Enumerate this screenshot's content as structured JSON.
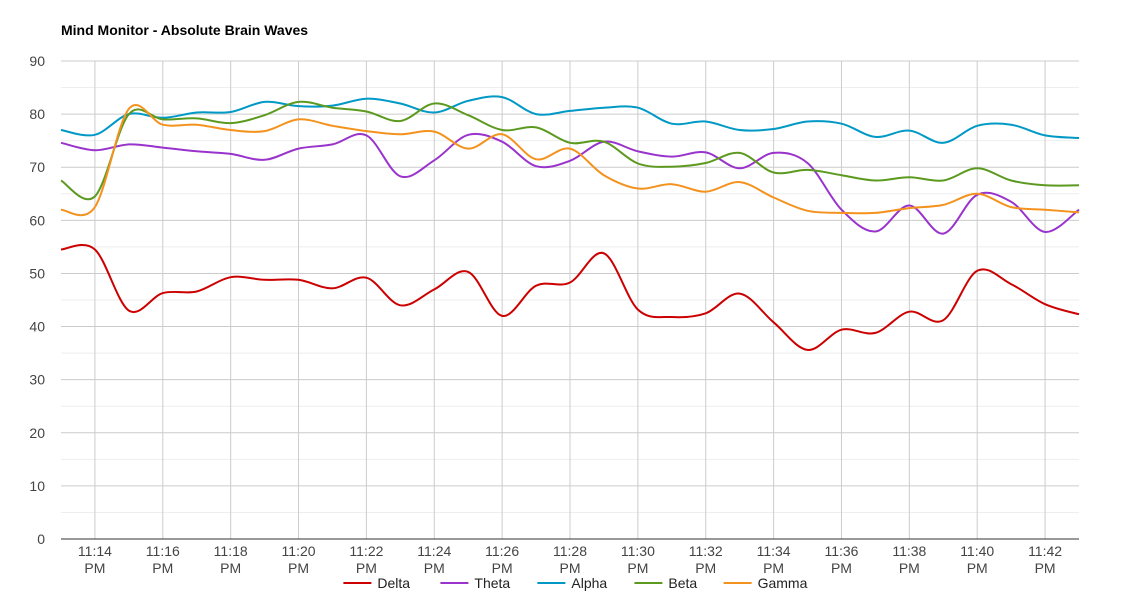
{
  "chart_data": {
    "type": "line",
    "title": "Mind Monitor -  Absolute Brain Waves",
    "xlabel": "",
    "ylabel": "",
    "ylim": [
      0,
      90
    ],
    "yticks": [
      0,
      10,
      20,
      30,
      40,
      50,
      60,
      70,
      80,
      90
    ],
    "xlim": [
      "11:13",
      "11:43"
    ],
    "xticks": [
      {
        "t": "11:14",
        "label": [
          "11:14",
          "PM"
        ]
      },
      {
        "t": "11:16",
        "label": [
          "11:16",
          "PM"
        ]
      },
      {
        "t": "11:18",
        "label": [
          "11:18",
          "PM"
        ]
      },
      {
        "t": "11:20",
        "label": [
          "11:20",
          "PM"
        ]
      },
      {
        "t": "11:22",
        "label": [
          "11:22",
          "PM"
        ]
      },
      {
        "t": "11:24",
        "label": [
          "11:24",
          "PM"
        ]
      },
      {
        "t": "11:26",
        "label": [
          "11:26",
          "PM"
        ]
      },
      {
        "t": "11:28",
        "label": [
          "11:28",
          "PM"
        ]
      },
      {
        "t": "11:30",
        "label": [
          "11:30",
          "PM"
        ]
      },
      {
        "t": "11:32",
        "label": [
          "11:32",
          "PM"
        ]
      },
      {
        "t": "11:34",
        "label": [
          "11:34",
          "PM"
        ]
      },
      {
        "t": "11:36",
        "label": [
          "11:36",
          "PM"
        ]
      },
      {
        "t": "11:38",
        "label": [
          "11:38",
          "PM"
        ]
      },
      {
        "t": "11:40",
        "label": [
          "11:40",
          "PM"
        ]
      },
      {
        "t": "11:42",
        "label": [
          "11:42",
          "PM"
        ]
      }
    ],
    "grid": true,
    "legend_position": "bottom",
    "x": [
      "11:13",
      "11:14",
      "11:15",
      "11:16",
      "11:17",
      "11:18",
      "11:19",
      "11:20",
      "11:21",
      "11:22",
      "11:23",
      "11:24",
      "11:25",
      "11:26",
      "11:27",
      "11:28",
      "11:29",
      "11:30",
      "11:31",
      "11:32",
      "11:33",
      "11:34",
      "11:35",
      "11:36",
      "11:37",
      "11:38",
      "11:39",
      "11:40",
      "11:41",
      "11:42",
      "11:43"
    ],
    "series": [
      {
        "name": "Delta",
        "color": "#cc0000",
        "values": [
          54.5,
          54.5,
          43,
          46.3,
          46.6,
          49.3,
          48.8,
          48.8,
          47.2,
          49.2,
          44,
          47,
          50.3,
          42,
          47.7,
          48.3,
          53.8,
          43.2,
          41.8,
          42.5,
          46.2,
          40.8,
          35.6,
          39.4,
          38.8,
          42.8,
          41.2,
          50.5,
          48,
          44.2,
          42.3
        ]
      },
      {
        "name": "Theta",
        "color": "#9933cc",
        "values": [
          74.6,
          73.2,
          74.3,
          73.7,
          73,
          72.5,
          71.4,
          73.5,
          74.3,
          76,
          68.3,
          71.3,
          76.1,
          74.8,
          70.2,
          71.2,
          74.8,
          73,
          72,
          72.8,
          69.8,
          72.7,
          70.8,
          62,
          57.9,
          62.8,
          57.5,
          64.8,
          63.5,
          57.8,
          62
        ]
      },
      {
        "name": "Alpha",
        "color": "#0099c6",
        "values": [
          77,
          76.1,
          80,
          79.3,
          80.3,
          80.4,
          82.3,
          81.5,
          81.6,
          82.9,
          82,
          80.3,
          82.5,
          83.2,
          80,
          80.6,
          81.2,
          81.2,
          78.2,
          78.6,
          77,
          77.2,
          78.6,
          78.2,
          75.7,
          76.9,
          74.6,
          77.8,
          78,
          76,
          75.5
        ]
      },
      {
        "name": "Beta",
        "color": "#5c9a1f",
        "values": [
          67.5,
          64.5,
          80,
          79,
          79.2,
          78.3,
          79.8,
          82.3,
          81.2,
          80.5,
          78.7,
          82,
          79.8,
          77,
          77.5,
          74.6,
          74.8,
          70.7,
          70.1,
          70.8,
          72.7,
          69,
          69.5,
          68.5,
          67.5,
          68.1,
          67.5,
          69.8,
          67.5,
          66.6,
          66.6
        ]
      },
      {
        "name": "Gamma",
        "color": "#f4921e",
        "values": [
          62,
          62.5,
          81,
          78,
          78,
          77,
          76.8,
          79,
          77.8,
          76.8,
          76.2,
          76.7,
          73.5,
          76.2,
          71.5,
          73.5,
          68.5,
          66,
          66.8,
          65.4,
          67.2,
          64.3,
          61.8,
          61.4,
          61.4,
          62.3,
          62.9,
          65,
          62.5,
          62,
          61.5
        ]
      }
    ]
  }
}
